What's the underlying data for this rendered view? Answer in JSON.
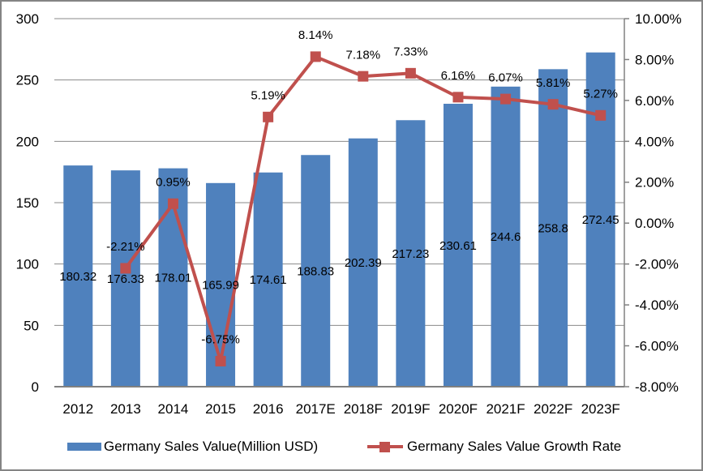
{
  "colors": {
    "bar": "#4F81BD",
    "line": "#C0504D",
    "gridline": "#8A8A8A",
    "axis_line": "#808080",
    "text": "#000000",
    "frame_border": "#848484",
    "background": "#FFFFFF"
  },
  "chart_data": {
    "type": "bar",
    "subtype": "bar+line combo, dual axis",
    "categories": [
      "2012",
      "2013",
      "2014",
      "2015",
      "2016",
      "2017E",
      "2018F",
      "2019F",
      "2020F",
      "2021F",
      "2022F",
      "2023F"
    ],
    "series": [
      {
        "name": "Germany Sales Value(Million USD)",
        "type": "bar",
        "axis": "left",
        "color": "#4F81BD",
        "values": [
          180.32,
          176.33,
          178.01,
          165.99,
          174.61,
          188.83,
          202.39,
          217.23,
          230.61,
          244.6,
          258.8,
          272.45
        ],
        "labels": [
          "180.32",
          "176.33",
          "178.01",
          "165.99",
          "174.61",
          "188.83",
          "202.39",
          "217.23",
          "230.61",
          "244.6",
          "258.8",
          "272.45"
        ]
      },
      {
        "name": "Germany Sales Value Growth Rate",
        "type": "line",
        "axis": "right",
        "color": "#C0504D",
        "values": [
          null,
          -2.21,
          0.95,
          -6.75,
          5.19,
          8.14,
          7.18,
          7.33,
          6.16,
          6.07,
          5.81,
          5.27
        ],
        "labels": [
          "",
          "-2.21%",
          "0.95%",
          "-6.75%",
          "5.19%",
          "8.14%",
          "7.18%",
          "7.33%",
          "6.16%",
          "6.07%",
          "5.81%",
          "5.27%"
        ]
      }
    ],
    "left_axis": {
      "min": 0,
      "max": 300,
      "ticks": [
        "300",
        "250",
        "200",
        "150",
        "100",
        "50",
        "0"
      ]
    },
    "right_axis": {
      "min": -8,
      "max": 10,
      "ticks": [
        "10.00%",
        "8.00%",
        "6.00%",
        "4.00%",
        "2.00%",
        "0.00%",
        "-2.00%",
        "-4.00%",
        "-6.00%",
        "-8.00%"
      ]
    },
    "grid": "horizontal gridlines on (left axis intervals)",
    "legend_position": "bottom"
  },
  "legend": {
    "items": [
      {
        "label": "Germany Sales Value(Million USD)",
        "color": "#4F81BD",
        "marker": "bar-swatch"
      },
      {
        "label": "Germany Sales Value Growth Rate",
        "color": "#C0504D",
        "marker": "line-with-square"
      }
    ]
  }
}
